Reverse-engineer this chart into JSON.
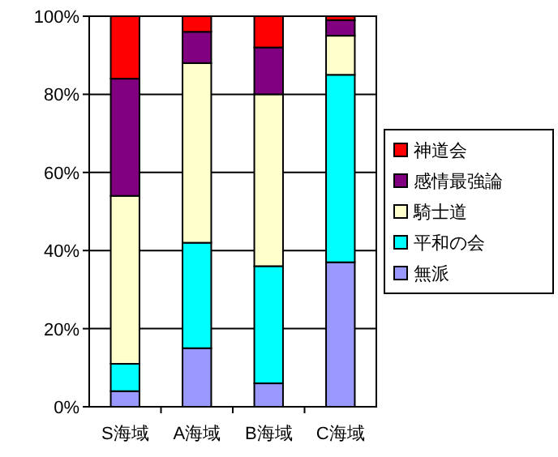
{
  "chart_data": {
    "type": "bar",
    "stacked": true,
    "categories": [
      "S海域",
      "A海域",
      "B海域",
      "C海域"
    ],
    "series": [
      {
        "name": "無派",
        "color": "#9999ff",
        "values": [
          4,
          15,
          6,
          37
        ]
      },
      {
        "name": "平和の会",
        "color": "#00ffff",
        "values": [
          7,
          27,
          30,
          48
        ]
      },
      {
        "name": "騎士道",
        "color": "#ffffcc",
        "values": [
          43,
          46,
          44,
          10
        ]
      },
      {
        "name": "感情最強論",
        "color": "#800080",
        "values": [
          30,
          8,
          12,
          4
        ]
      },
      {
        "name": "神道会",
        "color": "#ff0000",
        "values": [
          16,
          4,
          8,
          1
        ]
      }
    ],
    "ylim": [
      0,
      100
    ],
    "yticks": [
      {
        "value": 0,
        "label": "0%"
      },
      {
        "value": 20,
        "label": "20%"
      },
      {
        "value": 40,
        "label": "40%"
      },
      {
        "value": 60,
        "label": "60%"
      },
      {
        "value": 80,
        "label": "80%"
      },
      {
        "value": 100,
        "label": "100%"
      }
    ],
    "grid": "y",
    "legend": "right"
  }
}
